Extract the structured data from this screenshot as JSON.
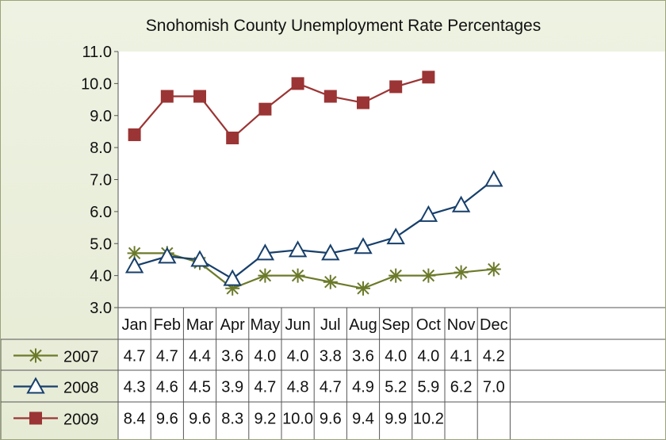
{
  "chart_data": {
    "type": "line",
    "title": "Snohomish County Unemployment Rate Percentages",
    "categories": [
      "Jan",
      "Feb",
      "Mar",
      "Apr",
      "May",
      "Jun",
      "Jul",
      "Aug",
      "Sep",
      "Oct",
      "Nov",
      "Dec"
    ],
    "ylim": [
      3.0,
      11.0
    ],
    "yticks": [
      "3.0",
      "4.0",
      "5.0",
      "6.0",
      "7.0",
      "8.0",
      "9.0",
      "10.0",
      "11.0"
    ],
    "grid": false,
    "legend": "data-table-left",
    "series": [
      {
        "name": "2007",
        "color": "#6b7a2a",
        "marker": "asterisk",
        "values": [
          4.7,
          4.7,
          4.4,
          3.6,
          4.0,
          4.0,
          3.8,
          3.6,
          4.0,
          4.0,
          4.1,
          4.2
        ],
        "labels": [
          "4.7",
          "4.7",
          "4.4",
          "3.6",
          "4.0",
          "4.0",
          "3.8",
          "3.6",
          "4.0",
          "4.0",
          "4.1",
          "4.2"
        ]
      },
      {
        "name": "2008",
        "color": "#173f6b",
        "marker": "triangle",
        "values": [
          4.3,
          4.6,
          4.5,
          3.9,
          4.7,
          4.8,
          4.7,
          4.9,
          5.2,
          5.9,
          6.2,
          7.0
        ],
        "labels": [
          "4.3",
          "4.6",
          "4.5",
          "3.9",
          "4.7",
          "4.8",
          "4.7",
          "4.9",
          "5.2",
          "5.9",
          "6.2",
          "7.0"
        ]
      },
      {
        "name": "2009",
        "color": "#9b3434",
        "marker": "square",
        "values": [
          8.4,
          9.6,
          9.6,
          8.3,
          9.2,
          10.0,
          9.6,
          9.4,
          9.9,
          10.2,
          null,
          null
        ],
        "labels": [
          "8.4",
          "9.6",
          "9.6",
          "8.3",
          "9.2",
          "10.0",
          "9.6",
          "9.4",
          "9.9",
          "10.2",
          "",
          ""
        ]
      }
    ]
  }
}
